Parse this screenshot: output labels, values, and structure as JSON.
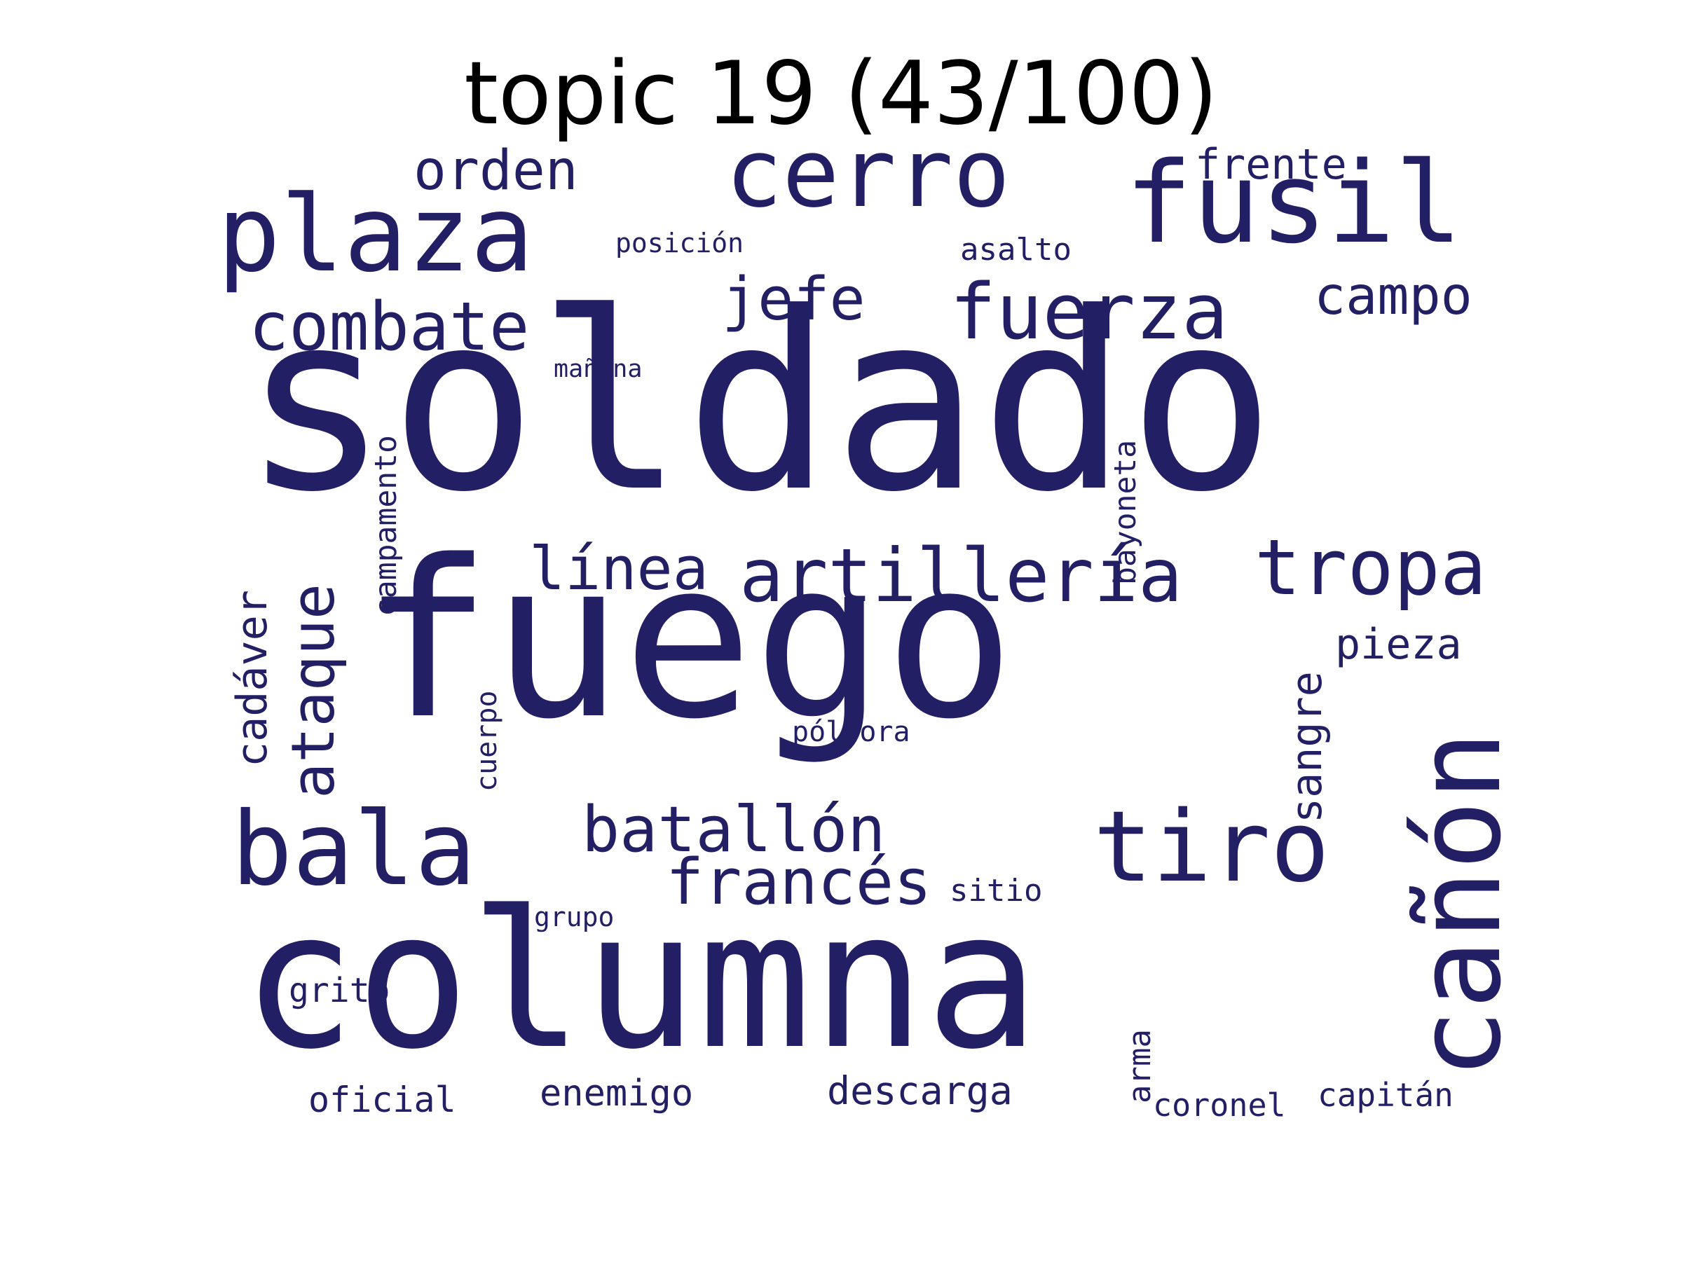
{
  "title": "topic 19 (43/100)",
  "word_color": "#221f64",
  "words": [
    {
      "text": "soldado",
      "rotated": false
    },
    {
      "text": "fuego",
      "rotated": false
    },
    {
      "text": "columna",
      "rotated": false
    },
    {
      "text": "cañón",
      "rotated": true
    },
    {
      "text": "cerro",
      "rotated": false
    },
    {
      "text": "fusil",
      "rotated": false
    },
    {
      "text": "plaza",
      "rotated": false
    },
    {
      "text": "fuerza",
      "rotated": false
    },
    {
      "text": "bala",
      "rotated": false
    },
    {
      "text": "tiro",
      "rotated": false
    },
    {
      "text": "artillería",
      "rotated": false
    },
    {
      "text": "tropa",
      "rotated": false
    },
    {
      "text": "combate",
      "rotated": false
    },
    {
      "text": "batallón",
      "rotated": false
    },
    {
      "text": "ataque",
      "rotated": true
    },
    {
      "text": "francés",
      "rotated": false
    },
    {
      "text": "línea",
      "rotated": false
    },
    {
      "text": "jefe",
      "rotated": false
    },
    {
      "text": "orden",
      "rotated": false
    },
    {
      "text": "campo",
      "rotated": false
    },
    {
      "text": "sangre",
      "rotated": true
    },
    {
      "text": "cadáver",
      "rotated": true
    },
    {
      "text": "pieza",
      "rotated": false
    },
    {
      "text": "frente",
      "rotated": false
    },
    {
      "text": "descarga",
      "rotated": false
    },
    {
      "text": "enemigo",
      "rotated": false
    },
    {
      "text": "oficial",
      "rotated": false
    },
    {
      "text": "coronel",
      "rotated": false
    },
    {
      "text": "capitán",
      "rotated": false
    },
    {
      "text": "bayoneta",
      "rotated": true
    },
    {
      "text": "campamento",
      "rotated": true
    },
    {
      "text": "grito",
      "rotated": false
    },
    {
      "text": "cuerpo",
      "rotated": true
    },
    {
      "text": "sitio",
      "rotated": false
    },
    {
      "text": "asalto",
      "rotated": false
    },
    {
      "text": "pólvora",
      "rotated": false
    },
    {
      "text": "arma",
      "rotated": true
    },
    {
      "text": "posición",
      "rotated": false
    },
    {
      "text": "grupo",
      "rotated": false
    },
    {
      "text": "mañana",
      "rotated": false
    }
  ]
}
